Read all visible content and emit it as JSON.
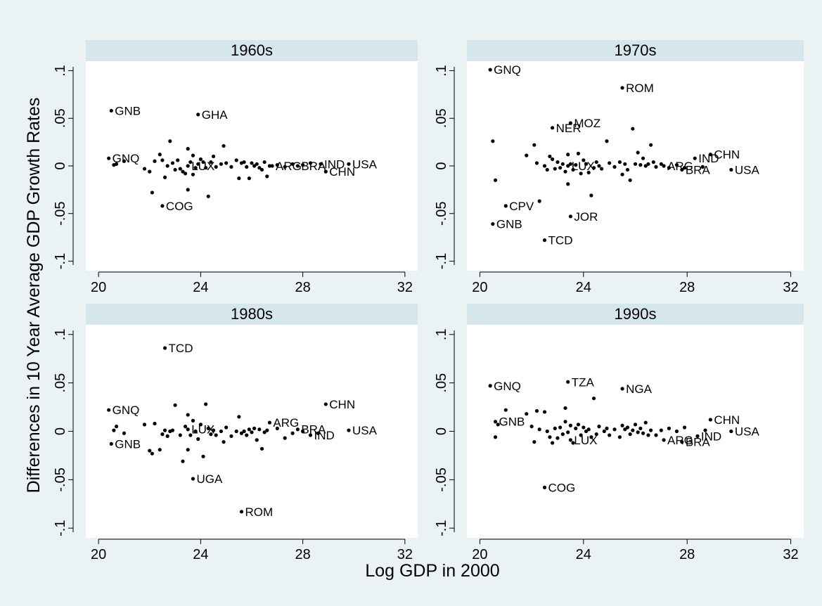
{
  "figure": {
    "ylabel": "Differences in 10 Year Average GDP Growth Rates",
    "xlabel": "Log GDP in 2000",
    "colors": {
      "outer": "#eaf2f3",
      "strip": "#d5e6ec",
      "plot": "#ffffff",
      "marker": "#000000",
      "text": "#000000"
    }
  },
  "chart_data": [
    {
      "type": "scatter",
      "title": "1960s",
      "xlim": [
        19.5,
        32.5
      ],
      "ylim": [
        -0.11,
        0.11
      ],
      "xticks": [
        20,
        24,
        28,
        32
      ],
      "yticks": [
        0.1,
        0.05,
        0,
        -0.05,
        -0.1
      ],
      "ytick_labels": [
        ".1",
        ".05",
        "0",
        "-.05",
        "-.1"
      ],
      "labeled_points": [
        {
          "label": "GNB",
          "x": 20.5,
          "y": 0.058
        },
        {
          "label": "GHA",
          "x": 23.9,
          "y": 0.054
        },
        {
          "label": "GNQ",
          "x": 20.4,
          "y": 0.008
        },
        {
          "label": "COG",
          "x": 22.5,
          "y": -0.042
        },
        {
          "label": "LUX",
          "x": 23.5,
          "y": 0.0
        },
        {
          "label": "ARG",
          "x": 26.8,
          "y": 0.0
        },
        {
          "label": "BRA",
          "x": 27.8,
          "y": 0.0
        },
        {
          "label": "IND",
          "x": 28.7,
          "y": 0.002
        },
        {
          "label": "CHN",
          "x": 28.9,
          "y": -0.006
        },
        {
          "label": "USA",
          "x": 29.8,
          "y": 0.002
        }
      ],
      "points": [
        [
          20.6,
          0.001
        ],
        [
          20.7,
          0.002
        ],
        [
          21.0,
          0.005
        ],
        [
          21.8,
          -0.003
        ],
        [
          22.0,
          -0.006
        ],
        [
          22.1,
          -0.028
        ],
        [
          22.2,
          0.005
        ],
        [
          22.4,
          0.012
        ],
        [
          22.5,
          0.006
        ],
        [
          22.6,
          -0.012
        ],
        [
          22.7,
          0.0
        ],
        [
          22.8,
          0.026
        ],
        [
          22.9,
          0.003
        ],
        [
          23.0,
          -0.004
        ],
        [
          23.1,
          0.006
        ],
        [
          23.2,
          -0.003
        ],
        [
          23.3,
          -0.006
        ],
        [
          23.4,
          -0.008
        ],
        [
          23.5,
          0.018
        ],
        [
          23.5,
          -0.025
        ],
        [
          23.6,
          0.004
        ],
        [
          23.7,
          -0.009
        ],
        [
          23.7,
          0.011
        ],
        [
          23.8,
          -0.002
        ],
        [
          23.9,
          0.002
        ],
        [
          24.0,
          0.007
        ],
        [
          24.1,
          0.004
        ],
        [
          24.2,
          -0.002
        ],
        [
          24.3,
          -0.032
        ],
        [
          24.4,
          0.004
        ],
        [
          24.5,
          0.01
        ],
        [
          24.6,
          -0.001
        ],
        [
          24.8,
          0.002
        ],
        [
          24.9,
          0.021
        ],
        [
          25.0,
          0.003
        ],
        [
          25.2,
          -0.001
        ],
        [
          25.4,
          0.006
        ],
        [
          25.5,
          -0.013
        ],
        [
          25.6,
          0.003
        ],
        [
          25.7,
          0.004
        ],
        [
          25.8,
          -0.001
        ],
        [
          25.9,
          -0.013
        ],
        [
          26.0,
          0.003
        ],
        [
          26.1,
          0.0
        ],
        [
          26.2,
          0.002
        ],
        [
          26.3,
          -0.002
        ],
        [
          26.4,
          -0.004
        ],
        [
          26.5,
          0.004
        ],
        [
          26.6,
          -0.011
        ],
        [
          26.7,
          0.0
        ],
        [
          27.0,
          0.001
        ],
        [
          27.3,
          -0.001
        ],
        [
          27.6,
          0.002
        ],
        [
          28.0,
          0.001
        ],
        [
          28.3,
          0.003
        ]
      ]
    },
    {
      "type": "scatter",
      "title": "1970s",
      "xlim": [
        19.5,
        32.5
      ],
      "ylim": [
        -0.11,
        0.11
      ],
      "xticks": [
        20,
        24,
        28,
        32
      ],
      "yticks": [
        0.1,
        0.05,
        0,
        -0.05,
        -0.1
      ],
      "ytick_labels": [
        ".1",
        ".05",
        "0",
        "-.05",
        "-.1"
      ],
      "labeled_points": [
        {
          "label": "GNQ",
          "x": 20.4,
          "y": 0.101
        },
        {
          "label": "ROM",
          "x": 25.5,
          "y": 0.082
        },
        {
          "label": "NER",
          "x": 22.8,
          "y": 0.04
        },
        {
          "label": "MOZ",
          "x": 23.5,
          "y": 0.045
        },
        {
          "label": "CPV",
          "x": 21.0,
          "y": -0.042
        },
        {
          "label": "JOR",
          "x": 23.5,
          "y": -0.053
        },
        {
          "label": "GNB",
          "x": 20.5,
          "y": -0.061
        },
        {
          "label": "TCD",
          "x": 22.5,
          "y": -0.078
        },
        {
          "label": "LUX",
          "x": 23.4,
          "y": 0.0
        },
        {
          "label": "ARG",
          "x": 27.1,
          "y": 0.0
        },
        {
          "label": "BRA",
          "x": 27.8,
          "y": -0.004
        },
        {
          "label": "IND",
          "x": 28.3,
          "y": 0.008
        },
        {
          "label": "CHN",
          "x": 28.9,
          "y": 0.012
        },
        {
          "label": "USA",
          "x": 29.7,
          "y": -0.004
        }
      ],
      "points": [
        [
          20.5,
          0.026
        ],
        [
          20.6,
          -0.015
        ],
        [
          21.8,
          0.011
        ],
        [
          22.1,
          0.022
        ],
        [
          22.2,
          0.003
        ],
        [
          22.3,
          -0.037
        ],
        [
          22.5,
          0.0
        ],
        [
          22.6,
          -0.004
        ],
        [
          22.7,
          0.01
        ],
        [
          22.8,
          0.007
        ],
        [
          22.9,
          -0.003
        ],
        [
          23.0,
          0.004
        ],
        [
          23.1,
          -0.002
        ],
        [
          23.2,
          0.002
        ],
        [
          23.3,
          -0.006
        ],
        [
          23.4,
          0.012
        ],
        [
          23.4,
          -0.019
        ],
        [
          23.5,
          0.002
        ],
        [
          23.6,
          -0.004
        ],
        [
          23.7,
          0.001
        ],
        [
          23.8,
          0.013
        ],
        [
          23.9,
          -0.008
        ],
        [
          24.0,
          0.006
        ],
        [
          24.1,
          0.002
        ],
        [
          24.2,
          -0.007
        ],
        [
          24.3,
          -0.031
        ],
        [
          24.4,
          -0.002
        ],
        [
          24.5,
          0.004
        ],
        [
          24.6,
          0.0
        ],
        [
          24.7,
          -0.003
        ],
        [
          24.9,
          0.026
        ],
        [
          25.0,
          0.003
        ],
        [
          25.2,
          -0.001
        ],
        [
          25.4,
          0.004
        ],
        [
          25.5,
          -0.009
        ],
        [
          25.6,
          0.002
        ],
        [
          25.7,
          -0.004
        ],
        [
          25.8,
          -0.015
        ],
        [
          25.9,
          0.039
        ],
        [
          26.0,
          0.002
        ],
        [
          26.1,
          0.014
        ],
        [
          26.2,
          0.001
        ],
        [
          26.3,
          0.008
        ],
        [
          26.4,
          0.0
        ],
        [
          26.5,
          0.002
        ],
        [
          26.6,
          0.022
        ],
        [
          26.7,
          0.004
        ],
        [
          26.8,
          -0.001
        ],
        [
          27.0,
          0.002
        ],
        [
          27.3,
          -0.002
        ],
        [
          27.6,
          0.001
        ],
        [
          27.9,
          -0.002
        ],
        [
          28.6,
          -0.001
        ]
      ]
    },
    {
      "type": "scatter",
      "title": "1980s",
      "xlim": [
        19.5,
        32.5
      ],
      "ylim": [
        -0.11,
        0.11
      ],
      "xticks": [
        20,
        24,
        28,
        32
      ],
      "yticks": [
        0.1,
        0.05,
        0,
        -0.05,
        -0.1
      ],
      "ytick_labels": [
        ".1",
        ".05",
        "0",
        "-.05",
        "-.1"
      ],
      "labeled_points": [
        {
          "label": "TCD",
          "x": 22.6,
          "y": 0.086
        },
        {
          "label": "GNQ",
          "x": 20.4,
          "y": 0.022
        },
        {
          "label": "CHN",
          "x": 28.9,
          "y": 0.028
        },
        {
          "label": "GNB",
          "x": 20.5,
          "y": -0.013
        },
        {
          "label": "LUX",
          "x": 23.5,
          "y": 0.002
        },
        {
          "label": "ARG",
          "x": 26.7,
          "y": 0.009
        },
        {
          "label": "BRA",
          "x": 27.8,
          "y": 0.002
        },
        {
          "label": "IND",
          "x": 28.3,
          "y": -0.004
        },
        {
          "label": "USA",
          "x": 29.8,
          "y": 0.001
        },
        {
          "label": "UGA",
          "x": 23.7,
          "y": -0.049
        },
        {
          "label": "ROM",
          "x": 25.6,
          "y": -0.083
        }
      ],
      "points": [
        [
          20.6,
          0.001
        ],
        [
          20.7,
          0.005
        ],
        [
          21.0,
          -0.002
        ],
        [
          21.8,
          0.007
        ],
        [
          22.0,
          -0.02
        ],
        [
          22.1,
          -0.023
        ],
        [
          22.2,
          0.008
        ],
        [
          22.4,
          -0.019
        ],
        [
          22.5,
          -0.003
        ],
        [
          22.6,
          0.001
        ],
        [
          22.7,
          -0.005
        ],
        [
          22.8,
          0.0
        ],
        [
          22.9,
          0.001
        ],
        [
          23.0,
          0.027
        ],
        [
          23.2,
          -0.004
        ],
        [
          23.3,
          -0.031
        ],
        [
          23.4,
          0.005
        ],
        [
          23.5,
          -0.019
        ],
        [
          23.5,
          0.017
        ],
        [
          23.6,
          -0.004
        ],
        [
          23.7,
          0.011
        ],
        [
          23.8,
          0.0
        ],
        [
          23.9,
          -0.008
        ],
        [
          24.0,
          0.007
        ],
        [
          24.1,
          -0.026
        ],
        [
          24.2,
          0.028
        ],
        [
          24.3,
          0.003
        ],
        [
          24.4,
          -0.003
        ],
        [
          24.5,
          0.001
        ],
        [
          24.6,
          -0.004
        ],
        [
          24.8,
          0.0
        ],
        [
          24.9,
          -0.011
        ],
        [
          25.0,
          0.004
        ],
        [
          25.2,
          -0.005
        ],
        [
          25.4,
          0.0
        ],
        [
          25.5,
          0.015
        ],
        [
          25.6,
          -0.002
        ],
        [
          25.7,
          0.0
        ],
        [
          25.8,
          -0.004
        ],
        [
          25.9,
          0.002
        ],
        [
          26.0,
          -0.001
        ],
        [
          26.1,
          0.003
        ],
        [
          26.2,
          -0.009
        ],
        [
          26.3,
          0.002
        ],
        [
          26.4,
          -0.018
        ],
        [
          26.5,
          -0.001
        ],
        [
          26.6,
          0.001
        ],
        [
          27.0,
          0.003
        ],
        [
          27.3,
          -0.007
        ],
        [
          27.6,
          -0.002
        ],
        [
          28.0,
          0.0
        ],
        [
          28.6,
          -0.002
        ]
      ]
    },
    {
      "type": "scatter",
      "title": "1990s",
      "xlim": [
        19.5,
        32.5
      ],
      "ylim": [
        -0.11,
        0.11
      ],
      "xticks": [
        20,
        24,
        28,
        32
      ],
      "yticks": [
        0.1,
        0.05,
        0,
        -0.05,
        -0.1
      ],
      "ytick_labels": [
        ".1",
        ".05",
        "0",
        "-.05",
        "-.1"
      ],
      "labeled_points": [
        {
          "label": "GNQ",
          "x": 20.4,
          "y": 0.047
        },
        {
          "label": "TZA",
          "x": 23.4,
          "y": 0.051
        },
        {
          "label": "NGA",
          "x": 25.5,
          "y": 0.044
        },
        {
          "label": "GNB",
          "x": 20.6,
          "y": 0.01
        },
        {
          "label": "LUX",
          "x": 23.5,
          "y": -0.009
        },
        {
          "label": "ARG",
          "x": 27.1,
          "y": -0.009
        },
        {
          "label": "BRA",
          "x": 27.8,
          "y": -0.011
        },
        {
          "label": "IND",
          "x": 28.4,
          "y": -0.005
        },
        {
          "label": "CHN",
          "x": 28.9,
          "y": 0.012
        },
        {
          "label": "USA",
          "x": 29.7,
          "y": 0.0
        },
        {
          "label": "COG",
          "x": 22.5,
          "y": -0.058
        }
      ],
      "points": [
        [
          20.6,
          -0.006
        ],
        [
          20.7,
          0.007
        ],
        [
          21.0,
          0.022
        ],
        [
          21.8,
          0.018
        ],
        [
          22.0,
          0.005
        ],
        [
          22.1,
          -0.011
        ],
        [
          22.2,
          0.021
        ],
        [
          22.3,
          0.002
        ],
        [
          22.5,
          0.02
        ],
        [
          22.6,
          0.0
        ],
        [
          22.7,
          -0.006
        ],
        [
          22.8,
          -0.012
        ],
        [
          22.9,
          0.003
        ],
        [
          23.0,
          -0.007
        ],
        [
          23.1,
          0.004
        ],
        [
          23.2,
          -0.003
        ],
        [
          23.3,
          0.024
        ],
        [
          23.3,
          0.01
        ],
        [
          23.4,
          -0.001
        ],
        [
          23.5,
          0.006
        ],
        [
          23.6,
          -0.012
        ],
        [
          23.7,
          0.003
        ],
        [
          23.8,
          0.007
        ],
        [
          23.9,
          -0.004
        ],
        [
          24.0,
          0.004
        ],
        [
          24.1,
          0.0
        ],
        [
          24.2,
          0.002
        ],
        [
          24.3,
          -0.006
        ],
        [
          24.4,
          0.034
        ],
        [
          24.5,
          -0.003
        ],
        [
          24.6,
          0.005
        ],
        [
          24.8,
          0.0
        ],
        [
          24.9,
          0.003
        ],
        [
          25.0,
          -0.004
        ],
        [
          25.2,
          0.002
        ],
        [
          25.4,
          -0.006
        ],
        [
          25.5,
          0.006
        ],
        [
          25.6,
          0.002
        ],
        [
          25.7,
          0.004
        ],
        [
          25.8,
          -0.003
        ],
        [
          25.9,
          0.001
        ],
        [
          26.0,
          0.007
        ],
        [
          26.1,
          -0.001
        ],
        [
          26.2,
          0.003
        ],
        [
          26.3,
          -0.002
        ],
        [
          26.4,
          0.009
        ],
        [
          26.5,
          -0.004
        ],
        [
          26.6,
          0.001
        ],
        [
          26.8,
          -0.004
        ],
        [
          27.0,
          0.001
        ],
        [
          27.3,
          0.003
        ],
        [
          27.6,
          0.0
        ],
        [
          27.9,
          0.004
        ],
        [
          28.7,
          0.001
        ]
      ]
    }
  ]
}
